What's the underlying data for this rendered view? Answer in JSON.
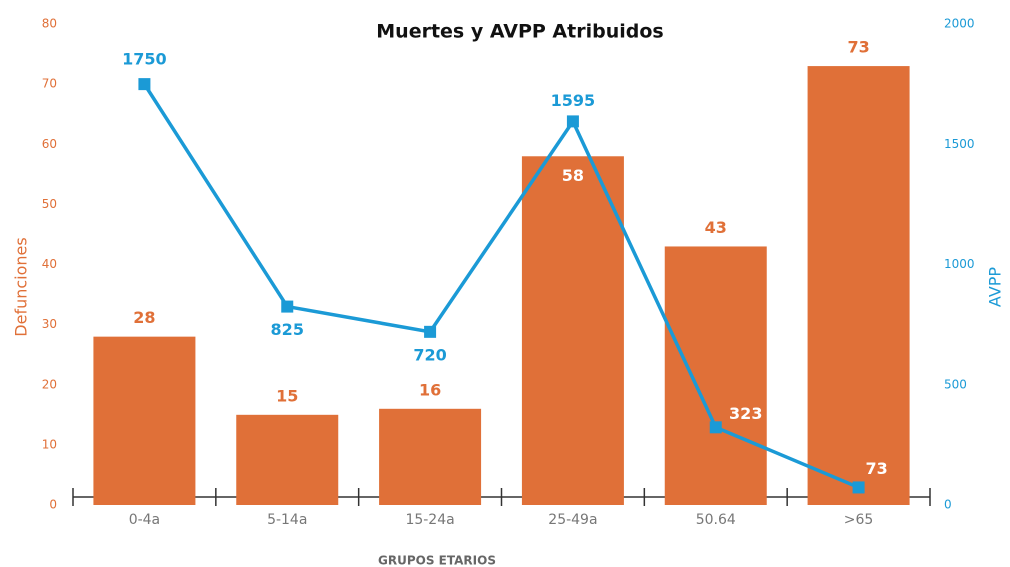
{
  "chart_data": {
    "type": "bar_line",
    "title": "Muertes y AVPP Atribuidos",
    "categories": [
      "0-4a",
      "5-14a",
      "15-24a",
      "25-49a",
      "50.64",
      ">65"
    ],
    "series": [
      {
        "name": "Defunciones",
        "type": "bar",
        "color": "#e07038",
        "values": [
          28,
          15,
          16,
          58,
          43,
          73
        ]
      },
      {
        "name": "AVPP",
        "type": "line",
        "axis": "y2",
        "color": "#1b9ad6",
        "values": [
          1750,
          825,
          720,
          1595,
          323,
          73
        ]
      }
    ],
    "xlabel": "GRUPOS ETARIOS",
    "ylabel": "Defunciones",
    "y2label": "AVPP",
    "ylim": [
      0,
      80
    ],
    "yticks": [
      0,
      10,
      20,
      30,
      40,
      50,
      60,
      70,
      80
    ],
    "y2lim": [
      0,
      2000
    ],
    "y2ticks": [
      0,
      500,
      1000,
      1500,
      2000
    ],
    "grid": false
  }
}
